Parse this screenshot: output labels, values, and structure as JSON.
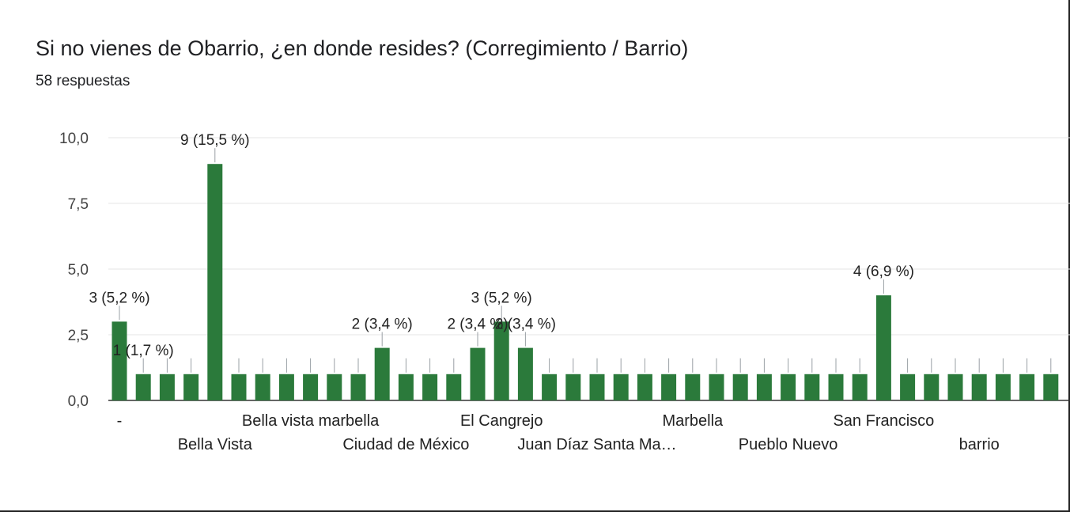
{
  "header": {
    "title": "Si no vienes de Obarrio, ¿en donde resides? (Corregimiento / Barrio)",
    "subtitle": "58 respuestas"
  },
  "colors": {
    "bar": "#2b7a3b",
    "grid": "#e6e6e6",
    "axis": "#333333"
  },
  "chart_data": {
    "type": "bar",
    "title": "Si no vienes de Obarrio, ¿en donde resides? (Corregimiento / Barrio)",
    "ylim": [
      0,
      10
    ],
    "yticks": [
      "0,0",
      "2,5",
      "5,0",
      "7,5",
      "10,0"
    ],
    "grid": true,
    "visible_categories": [
      {
        "text": "-",
        "index": 0,
        "row": 0
      },
      {
        "text": "Bella Vista",
        "index": 4,
        "row": 1
      },
      {
        "text": "Bella vista marbella",
        "index": 8,
        "row": 0
      },
      {
        "text": "Ciudad de México",
        "index": 12,
        "row": 1
      },
      {
        "text": "El Cangrejo",
        "index": 16,
        "row": 0
      },
      {
        "text": "Juan Díaz Santa Ma…",
        "index": 20,
        "row": 1
      },
      {
        "text": "Marbella",
        "index": 24,
        "row": 0
      },
      {
        "text": "Pueblo Nuevo",
        "index": 28,
        "row": 1
      },
      {
        "text": "San Francisco",
        "index": 32,
        "row": 0
      },
      {
        "text": "barrio",
        "index": 36,
        "row": 1
      }
    ],
    "values": [
      3,
      1,
      1,
      1,
      9,
      1,
      1,
      1,
      1,
      1,
      1,
      2,
      1,
      1,
      1,
      2,
      3,
      2,
      1,
      1,
      1,
      1,
      1,
      1,
      1,
      1,
      1,
      1,
      1,
      1,
      1,
      1,
      4,
      1,
      1,
      1,
      1,
      1,
      1,
      1
    ],
    "data_labels": [
      {
        "text": "3 (5,2 %)",
        "index": 0
      },
      {
        "text": "9 (15,5 %)",
        "index": 4
      },
      {
        "text": "2 (3,4 %)",
        "index": 11
      },
      {
        "text": "2 (3,4 %)",
        "index": 15
      },
      {
        "text": "3 (5,2 %)",
        "index": 16
      },
      {
        "text": "2 (3,4 %)",
        "index": 17
      },
      {
        "text": "4 (6,9 %)",
        "index": 32
      },
      {
        "text": "1 (1,7 %)",
        "index": 1
      }
    ]
  }
}
